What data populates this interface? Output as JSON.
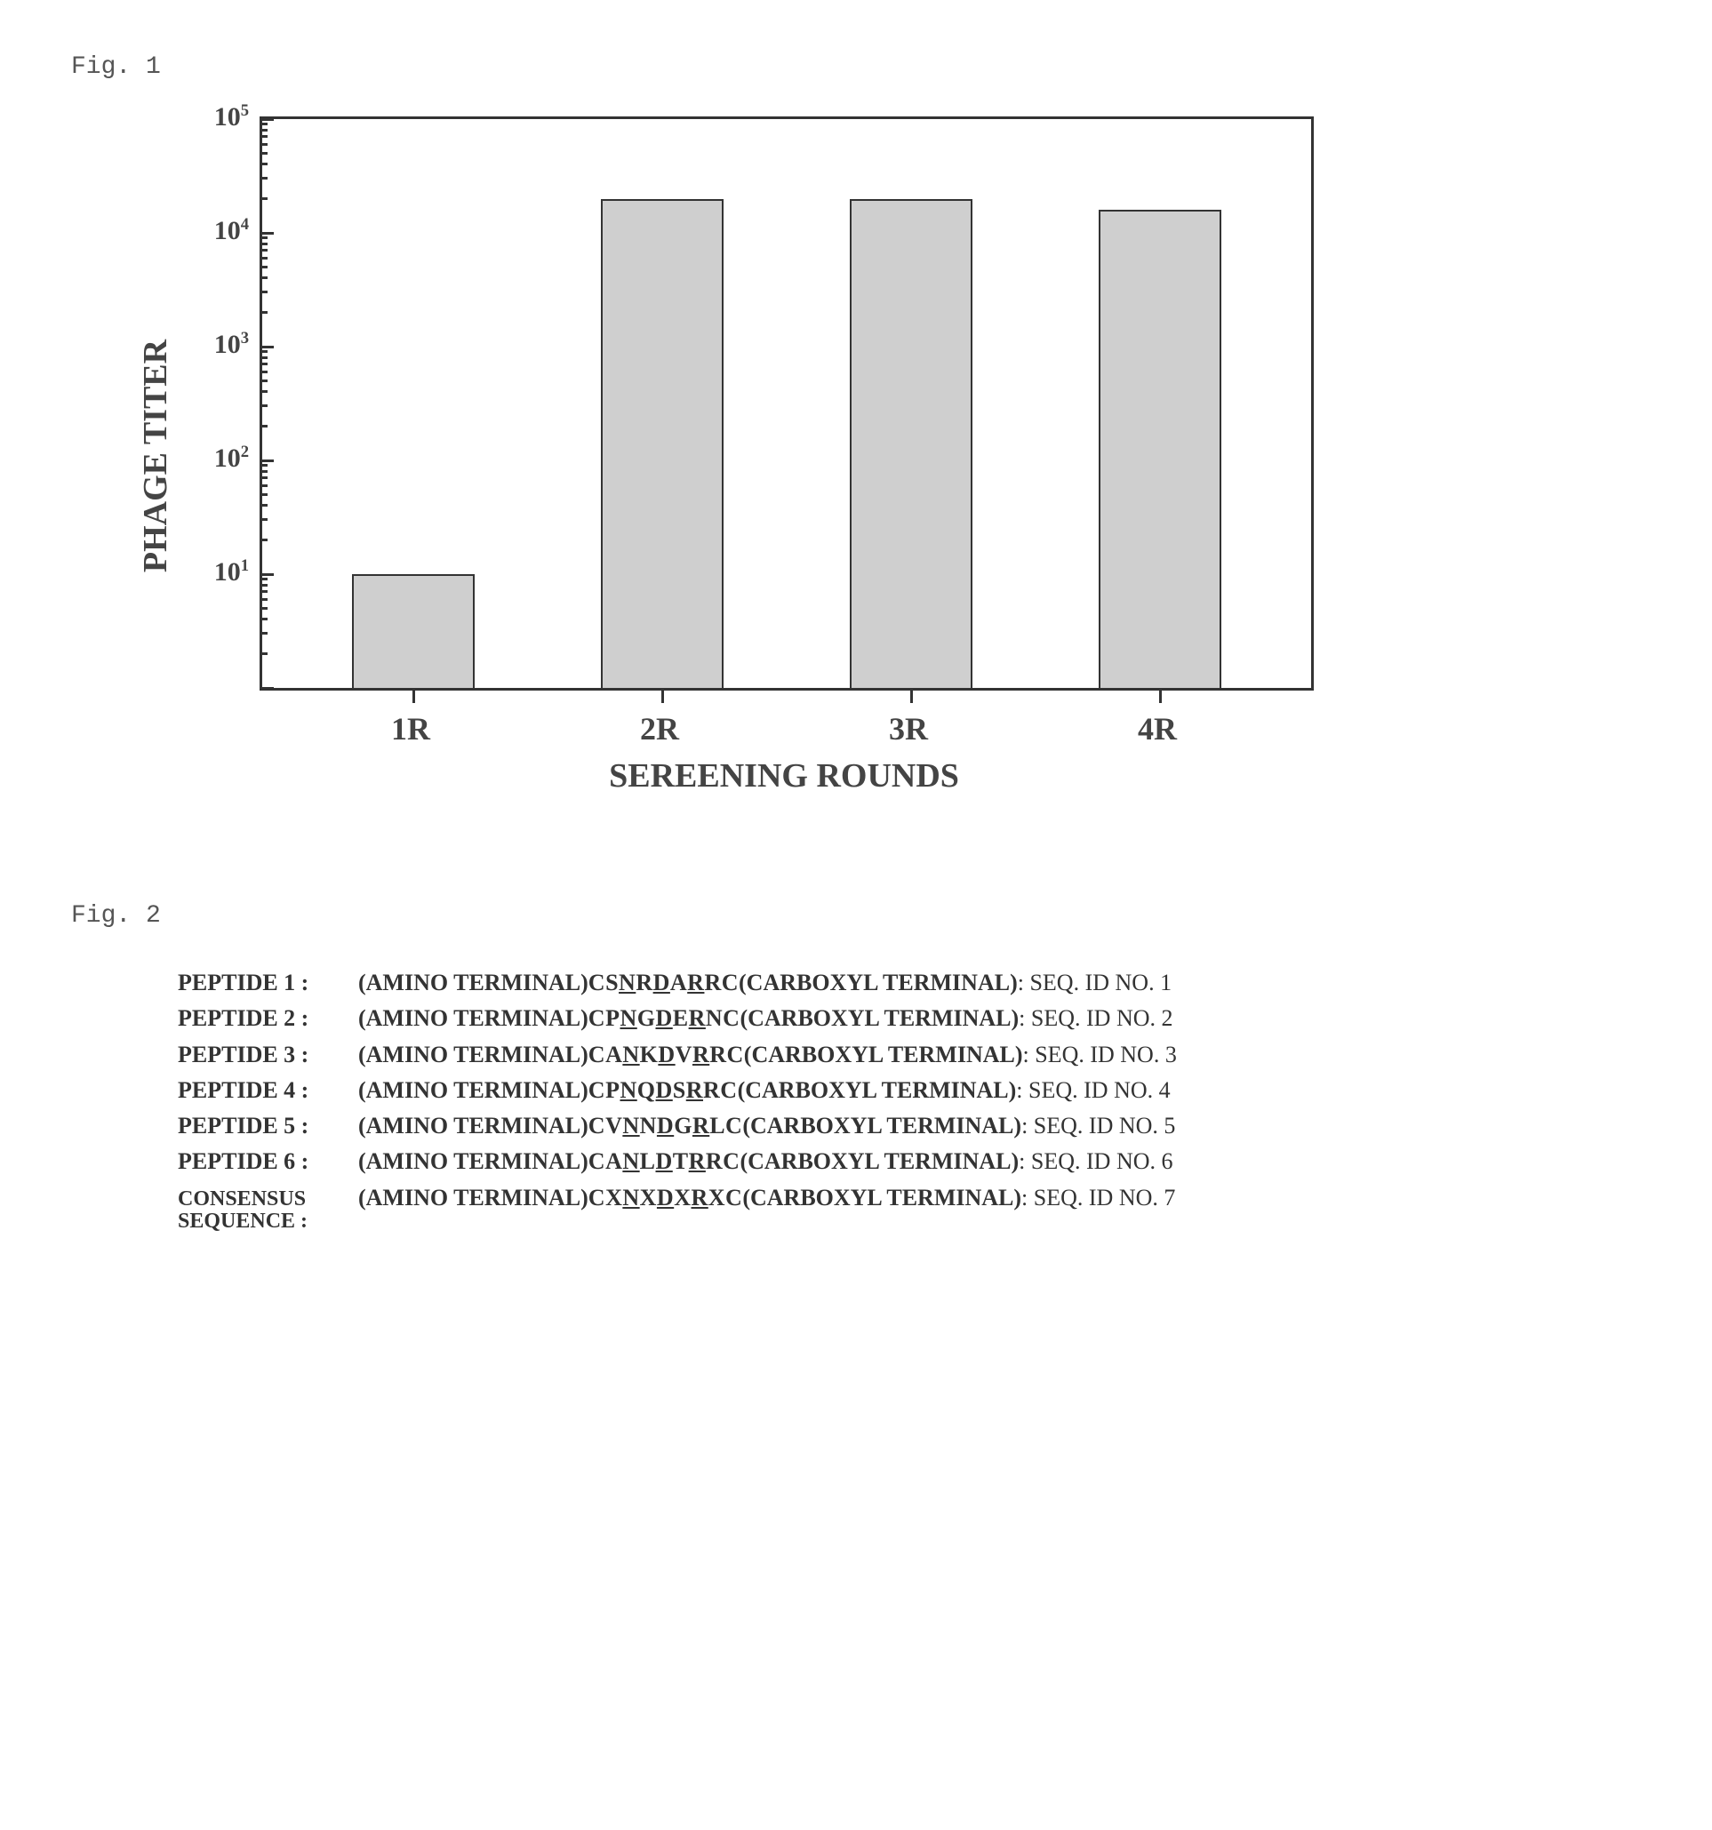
{
  "fig1": {
    "label": "Fig. 1",
    "chart": {
      "type": "bar",
      "ylabel": "PHAGE TITER",
      "xlabel": "SEREENING ROUNDS",
      "yscale": "log",
      "ylim_exp": [
        0,
        5
      ],
      "ytick_exp": [
        1,
        2,
        3,
        4,
        5
      ],
      "ytick_base_label": "10",
      "bar_fill": "#cfcfcf",
      "bar_stroke": "#333333",
      "axis_color": "#333333",
      "text_color": "#444444",
      "background": "#ffffff",
      "font_family": "Times New Roman",
      "ylabel_fontsize_pt": 26,
      "xlabel_fontsize_pt": 26,
      "ticklabel_fontsize_pt": 22,
      "categories": [
        "1R",
        "2R",
        "3R",
        "4R"
      ],
      "values_log10": [
        1.0,
        4.3,
        4.3,
        4.2
      ],
      "bar_relative_width": 0.56,
      "plot_aspect_w_h": [
        1180,
        640
      ]
    }
  },
  "fig2": {
    "label": "Fig. 2",
    "text_color": "#333333",
    "font_family": "Times New Roman",
    "label_fontsize_pt": 18,
    "body_fontsize_pt": 18,
    "amino_term": "(AMINO TERMINAL)",
    "carboxyl_term": "(CARBOXYL TERMINAL)",
    "seqid_prefix": "SEQ. ID NO.",
    "consensus_label_line1": "CONSENSUS",
    "consensus_label_line2": "SEQUENCE :",
    "peptides": [
      {
        "label": "PEPTIDE 1 :",
        "seq_html": "CS<span class='u'>N</span>R<span class='u'>D</span>A<span class='u'>R</span>RC",
        "seqid": 1
      },
      {
        "label": "PEPTIDE 2 :",
        "seq_html": "CP<span class='u'>N</span>G<span class='u'>D</span>E<span class='u'>R</span>NC",
        "seqid": 2
      },
      {
        "label": "PEPTIDE 3 :",
        "seq_html": "CA<span class='u'>N</span>K<span class='u'>D</span>V<span class='u'>R</span>RC",
        "seqid": 3
      },
      {
        "label": "PEPTIDE 4 :",
        "seq_html": "CP<span class='u'>N</span>Q<span class='u'>D</span>S<span class='u'>R</span>RC",
        "seqid": 4
      },
      {
        "label": "PEPTIDE 5 :",
        "seq_html": "CV<span class='u'>N</span>N<span class='u'>D</span>G<span class='u'>R</span>LC",
        "seqid": 5
      },
      {
        "label": "PEPTIDE 6 :",
        "seq_html": "CA<span class='u'>N</span>L<span class='u'>D</span>T<span class='u'>R</span>RC",
        "seqid": 6
      }
    ],
    "consensus": {
      "seq_html": "CX<span class='u'>N</span>X<span class='u'>D</span>X<span class='u'>R</span>XC",
      "seqid": 7
    }
  }
}
